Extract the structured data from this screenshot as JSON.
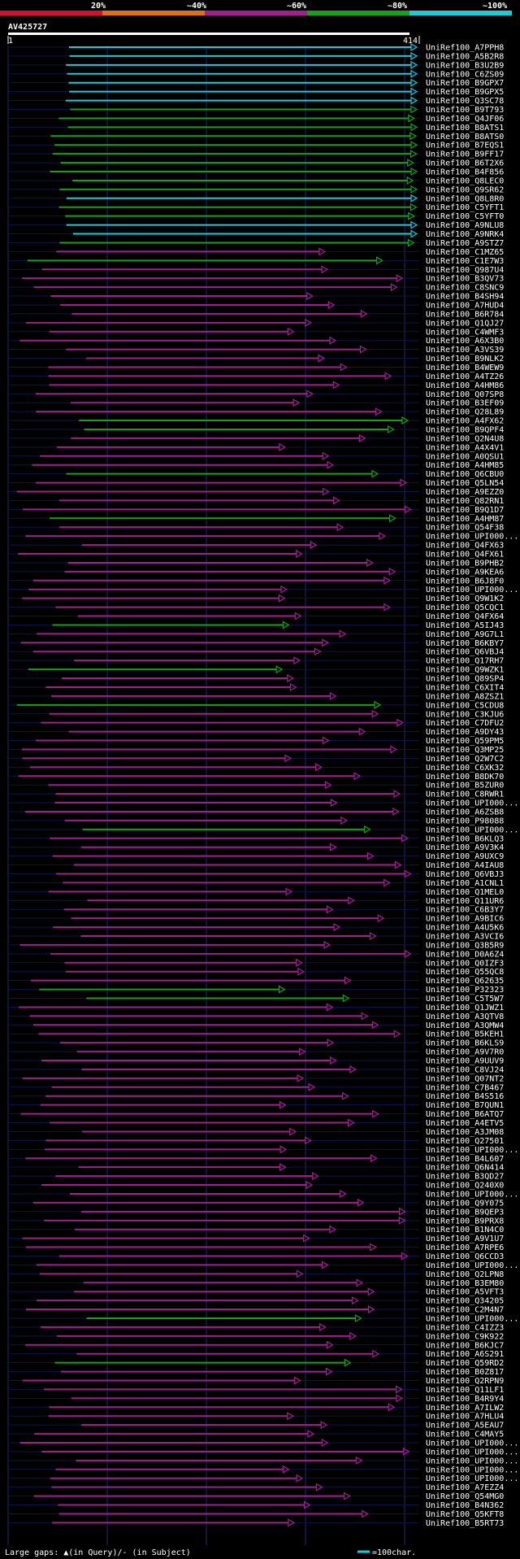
{
  "header": {
    "query_id": "AV425727",
    "scale_labels": [
      "20%",
      "~40%",
      "~60%",
      "~80%",
      "~100%"
    ],
    "scale_colors": [
      "#d0122e",
      "#e07018",
      "#a0208e",
      "#18a018",
      "#20c8d8"
    ],
    "query_start": "1",
    "query_end": "414"
  },
  "hits": [
    {
      "id": "UniRef100_A7PPH8",
      "color": "#20c8d8"
    },
    {
      "id": "UniRef100_A5B2R8",
      "color": "#20c8d8"
    },
    {
      "id": "UniRef100_B3U2B9",
      "color": "#20c8d8"
    },
    {
      "id": "UniRef100_C6ZS09",
      "color": "#20c8d8"
    },
    {
      "id": "UniRef100_B9GPX7",
      "color": "#20c8d8"
    },
    {
      "id": "UniRef100_B9GPX5",
      "color": "#20c8d8"
    },
    {
      "id": "UniRef100_Q3SC78",
      "color": "#20c8d8"
    },
    {
      "id": "UniRef100_B9T793",
      "color": "#18a018"
    },
    {
      "id": "UniRef100_Q4JF06",
      "color": "#18a018"
    },
    {
      "id": "UniRef100_B8ATS1",
      "color": "#18a018"
    },
    {
      "id": "UniRef100_B8ATS0",
      "color": "#18a018"
    },
    {
      "id": "UniRef100_B7EQS1",
      "color": "#18a018"
    },
    {
      "id": "UniRef100_B9FF17",
      "color": "#18a018"
    },
    {
      "id": "UniRef100_B6T2X6",
      "color": "#18a018"
    },
    {
      "id": "UniRef100_B4F856",
      "color": "#18a018"
    },
    {
      "id": "UniRef100_Q8LEC0",
      "color": "#18a018"
    },
    {
      "id": "UniRef100_Q9SR62",
      "color": "#18a018"
    },
    {
      "id": "UniRef100_Q8L8R0",
      "color": "#20c8d8"
    },
    {
      "id": "UniRef100_C5YFT1",
      "color": "#18a018"
    },
    {
      "id": "UniRef100_C5YFT0",
      "color": "#18a018"
    },
    {
      "id": "UniRef100_A9NLU8",
      "color": "#20c8d8"
    },
    {
      "id": "UniRef100_A9NRK4",
      "color": "#20c8d8"
    },
    {
      "id": "UniRef100_A9STZ7",
      "color": "#18a018"
    },
    {
      "id": "UniRef100_C1MZ65",
      "color": "#a0208e"
    },
    {
      "id": "UniRef100_C1E7W3",
      "color": "#18a018"
    },
    {
      "id": "UniRef100_Q987U4",
      "color": "#a0208e"
    },
    {
      "id": "UniRef100_B3QV73",
      "color": "#a0208e"
    },
    {
      "id": "UniRef100_C8SNC9",
      "color": "#a0208e"
    },
    {
      "id": "UniRef100_B4SH94",
      "color": "#a0208e"
    },
    {
      "id": "UniRef100_A7HUD4",
      "color": "#a0208e"
    },
    {
      "id": "UniRef100_B6R784",
      "color": "#a0208e"
    },
    {
      "id": "UniRef100_Q1QJ27",
      "color": "#a0208e"
    },
    {
      "id": "UniRef100_C4WMF3",
      "color": "#a0208e"
    },
    {
      "id": "UniRef100_A6X3B0",
      "color": "#a0208e"
    },
    {
      "id": "UniRef100_A3VS39",
      "color": "#a0208e"
    },
    {
      "id": "UniRef100_B9NLK2",
      "color": "#a0208e"
    },
    {
      "id": "UniRef100_B4WEW9",
      "color": "#a0208e"
    },
    {
      "id": "UniRef100_A4TZ26",
      "color": "#a0208e"
    },
    {
      "id": "UniRef100_A4HM86",
      "color": "#a0208e"
    },
    {
      "id": "UniRef100_Q07SP8",
      "color": "#a0208e"
    },
    {
      "id": "UniRef100_B3EF09",
      "color": "#a0208e"
    },
    {
      "id": "UniRef100_Q28L89",
      "color": "#a0208e"
    },
    {
      "id": "UniRef100_A4FX62",
      "color": "#18a018"
    },
    {
      "id": "UniRef100_B9QPF4",
      "color": "#18a018"
    },
    {
      "id": "UniRef100_Q2N4U8",
      "color": "#a0208e"
    },
    {
      "id": "UniRef100_A4X4V1",
      "color": "#a0208e"
    },
    {
      "id": "UniRef100_A0QSU1",
      "color": "#a0208e"
    },
    {
      "id": "UniRef100_A4HM85",
      "color": "#a0208e"
    },
    {
      "id": "UniRef100_Q6CBU0",
      "color": "#18a018"
    },
    {
      "id": "UniRef100_Q5LN54",
      "color": "#a0208e"
    },
    {
      "id": "UniRef100_A9EZZ0",
      "color": "#a0208e"
    },
    {
      "id": "UniRef100_Q82RN1",
      "color": "#a0208e"
    },
    {
      "id": "UniRef100_B9Q1D7",
      "color": "#a0208e"
    },
    {
      "id": "UniRef100_A4HM87",
      "color": "#18a018"
    },
    {
      "id": "UniRef100_Q54F38",
      "color": "#a0208e"
    },
    {
      "id": "UniRef100_UPI000...",
      "color": "#a0208e"
    },
    {
      "id": "UniRef100_Q4FX63",
      "color": "#a0208e"
    },
    {
      "id": "UniRef100_Q4FX61",
      "color": "#a0208e"
    },
    {
      "id": "UniRef100_B9PHB2",
      "color": "#a0208e"
    },
    {
      "id": "UniRef100_A9KEA6",
      "color": "#a0208e"
    },
    {
      "id": "UniRef100_B6J8F0",
      "color": "#a0208e"
    },
    {
      "id": "UniRef100_UPI000...",
      "color": "#a0208e"
    },
    {
      "id": "UniRef100_Q9W1K2",
      "color": "#a0208e"
    },
    {
      "id": "UniRef100_Q5CQC1",
      "color": "#a0208e"
    },
    {
      "id": "UniRef100_Q4FX64",
      "color": "#a0208e"
    },
    {
      "id": "UniRef100_A5IJ43",
      "color": "#18a018"
    },
    {
      "id": "UniRef100_A9G7L1",
      "color": "#a0208e"
    },
    {
      "id": "UniRef100_B6KBY7",
      "color": "#a0208e"
    },
    {
      "id": "UniRef100_Q6VBJ4",
      "color": "#a0208e"
    },
    {
      "id": "UniRef100_Q17RH7",
      "color": "#a0208e"
    },
    {
      "id": "UniRef100_Q9WZK1",
      "color": "#18a018"
    },
    {
      "id": "UniRef100_Q89SP4",
      "color": "#a0208e"
    },
    {
      "id": "UniRef100_C6XIT4",
      "color": "#a0208e"
    },
    {
      "id": "UniRef100_A8ZSZ1",
      "color": "#a0208e"
    },
    {
      "id": "UniRef100_C5CDU8",
      "color": "#18a018"
    },
    {
      "id": "UniRef100_C3KJU6",
      "color": "#a0208e"
    },
    {
      "id": "UniRef100_C7DFU2",
      "color": "#a0208e"
    },
    {
      "id": "UniRef100_A9DY43",
      "color": "#a0208e"
    },
    {
      "id": "UniRef100_Q59PM5",
      "color": "#a0208e"
    },
    {
      "id": "UniRef100_Q3MP25",
      "color": "#a0208e"
    },
    {
      "id": "UniRef100_Q2W7C2",
      "color": "#a0208e"
    },
    {
      "id": "UniRef100_C6XK32",
      "color": "#a0208e"
    },
    {
      "id": "UniRef100_B8DK70",
      "color": "#a0208e"
    },
    {
      "id": "UniRef100_B5ZUR0",
      "color": "#a0208e"
    },
    {
      "id": "UniRef100_C8RWR1",
      "color": "#a0208e"
    },
    {
      "id": "UniRef100_UPI000...",
      "color": "#a0208e"
    },
    {
      "id": "UniRef100_A6ZSB8",
      "color": "#a0208e"
    },
    {
      "id": "UniRef100_P98088",
      "color": "#a0208e"
    },
    {
      "id": "UniRef100_UPI000...",
      "color": "#18a018"
    },
    {
      "id": "UniRef100_B6KLQ3",
      "color": "#a0208e"
    },
    {
      "id": "UniRef100_A9V3K4",
      "color": "#a0208e"
    },
    {
      "id": "UniRef100_A9UXC9",
      "color": "#a0208e"
    },
    {
      "id": "UniRef100_A4IAU8",
      "color": "#a0208e"
    },
    {
      "id": "UniRef100_Q6VBJ3",
      "color": "#a0208e"
    },
    {
      "id": "UniRef100_A1CNL1",
      "color": "#a0208e"
    },
    {
      "id": "UniRef100_Q1MEL0",
      "color": "#a0208e"
    },
    {
      "id": "UniRef100_Q11UR6",
      "color": "#a0208e"
    },
    {
      "id": "UniRef100_C6B3Y7",
      "color": "#a0208e"
    },
    {
      "id": "UniRef100_A9BIC6",
      "color": "#a0208e"
    },
    {
      "id": "UniRef100_A4U5K6",
      "color": "#a0208e"
    },
    {
      "id": "UniRef100_A3VCI6",
      "color": "#a0208e"
    },
    {
      "id": "UniRef100_Q3B5R9",
      "color": "#a0208e"
    },
    {
      "id": "UniRef100_D0A6Z4",
      "color": "#a0208e"
    },
    {
      "id": "UniRef100_Q0IZF3",
      "color": "#a0208e"
    },
    {
      "id": "UniRef100_Q55QC8",
      "color": "#a0208e"
    },
    {
      "id": "UniRef100_Q62635",
      "color": "#a0208e"
    },
    {
      "id": "UniRef100_P32323",
      "color": "#18a018"
    },
    {
      "id": "UniRef100_C5T5W7",
      "color": "#18a018"
    },
    {
      "id": "UniRef100_Q1JWZ1",
      "color": "#a0208e"
    },
    {
      "id": "UniRef100_A3QTV8",
      "color": "#a0208e"
    },
    {
      "id": "UniRef100_A3QMW4",
      "color": "#a0208e"
    },
    {
      "id": "UniRef100_B5KEH1",
      "color": "#a0208e"
    },
    {
      "id": "UniRef100_B6KLS9",
      "color": "#a0208e"
    },
    {
      "id": "UniRef100_A9V7R0",
      "color": "#a0208e"
    },
    {
      "id": "UniRef100_A9UUV9",
      "color": "#a0208e"
    },
    {
      "id": "UniRef100_C8VJ24",
      "color": "#a0208e"
    },
    {
      "id": "UniRef100_Q07NT2",
      "color": "#a0208e"
    },
    {
      "id": "UniRef100_C7B467",
      "color": "#a0208e"
    },
    {
      "id": "UniRef100_B4S516",
      "color": "#a0208e"
    },
    {
      "id": "UniRef100_B7QUN1",
      "color": "#a0208e"
    },
    {
      "id": "UniRef100_B6ATQ7",
      "color": "#a0208e"
    },
    {
      "id": "UniRef100_A4ETV5",
      "color": "#a0208e"
    },
    {
      "id": "UniRef100_A3JM08",
      "color": "#a0208e"
    },
    {
      "id": "UniRef100_Q27501",
      "color": "#a0208e"
    },
    {
      "id": "UniRef100_UPI000...",
      "color": "#a0208e"
    },
    {
      "id": "UniRef100_B4L607",
      "color": "#a0208e"
    },
    {
      "id": "UniRef100_Q6N414",
      "color": "#a0208e"
    },
    {
      "id": "UniRef100_B3QD27",
      "color": "#a0208e"
    },
    {
      "id": "UniRef100_Q240X0",
      "color": "#a0208e"
    },
    {
      "id": "UniRef100_UPI000...",
      "color": "#a0208e"
    },
    {
      "id": "UniRef100_Q9Y075",
      "color": "#a0208e"
    },
    {
      "id": "UniRef100_B9QEP3",
      "color": "#a0208e"
    },
    {
      "id": "UniRef100_B9PRX8",
      "color": "#a0208e"
    },
    {
      "id": "UniRef100_B1N4C0",
      "color": "#a0208e"
    },
    {
      "id": "UniRef100_A9V1U7",
      "color": "#a0208e"
    },
    {
      "id": "UniRef100_A7RPE6",
      "color": "#a0208e"
    },
    {
      "id": "UniRef100_Q6CCD3",
      "color": "#a0208e"
    },
    {
      "id": "UniRef100_UPI000...",
      "color": "#a0208e"
    },
    {
      "id": "UniRef100_Q2LPN8",
      "color": "#a0208e"
    },
    {
      "id": "UniRef100_B3EM80",
      "color": "#a0208e"
    },
    {
      "id": "UniRef100_A5VFT3",
      "color": "#a0208e"
    },
    {
      "id": "UniRef100_Q34205",
      "color": "#a0208e"
    },
    {
      "id": "UniRef100_C2M4N7",
      "color": "#a0208e"
    },
    {
      "id": "UniRef100_UPI000...",
      "color": "#18a018"
    },
    {
      "id": "UniRef100_C4IZZ3",
      "color": "#a0208e"
    },
    {
      "id": "UniRef100_C9K922",
      "color": "#a0208e"
    },
    {
      "id": "UniRef100_B6KJC7",
      "color": "#a0208e"
    },
    {
      "id": "UniRef100_A6S291",
      "color": "#a0208e"
    },
    {
      "id": "UniRef100_Q59RD2",
      "color": "#18a018"
    },
    {
      "id": "UniRef100_B0Z817",
      "color": "#a0208e"
    },
    {
      "id": "UniRef100_Q2RPN9",
      "color": "#a0208e"
    },
    {
      "id": "UniRef100_Q11LF1",
      "color": "#a0208e"
    },
    {
      "id": "UniRef100_B4R9Y4",
      "color": "#a0208e"
    },
    {
      "id": "UniRef100_A7ILW2",
      "color": "#a0208e"
    },
    {
      "id": "UniRef100_A7HLU4",
      "color": "#a0208e"
    },
    {
      "id": "UniRef100_A5EAU7",
      "color": "#a0208e"
    },
    {
      "id": "UniRef100_C4MAY5",
      "color": "#a0208e"
    },
    {
      "id": "UniRef100_UPI000...",
      "color": "#a0208e"
    },
    {
      "id": "UniRef100_UPI000...",
      "color": "#a0208e"
    },
    {
      "id": "UniRef100_UPI000...",
      "color": "#a0208e"
    },
    {
      "id": "UniRef100_UPI000...",
      "color": "#a0208e"
    },
    {
      "id": "UniRef100_UPI000...",
      "color": "#a0208e"
    },
    {
      "id": "UniRef100_A7EZZ4",
      "color": "#a0208e"
    },
    {
      "id": "UniRef100_Q54MG0",
      "color": "#a0208e"
    },
    {
      "id": "UniRef100_B4N362",
      "color": "#a0208e"
    },
    {
      "id": "UniRef100_Q5KFT8",
      "color": "#a0208e"
    },
    {
      "id": "UniRef100_B5RT73",
      "color": "#a0208e"
    }
  ],
  "footer": {
    "legend_text": "Large gaps: ▲(in Query)/- (in Subject)",
    "scale_text": "=100char.",
    "scale_color": "#20c8d8"
  }
}
